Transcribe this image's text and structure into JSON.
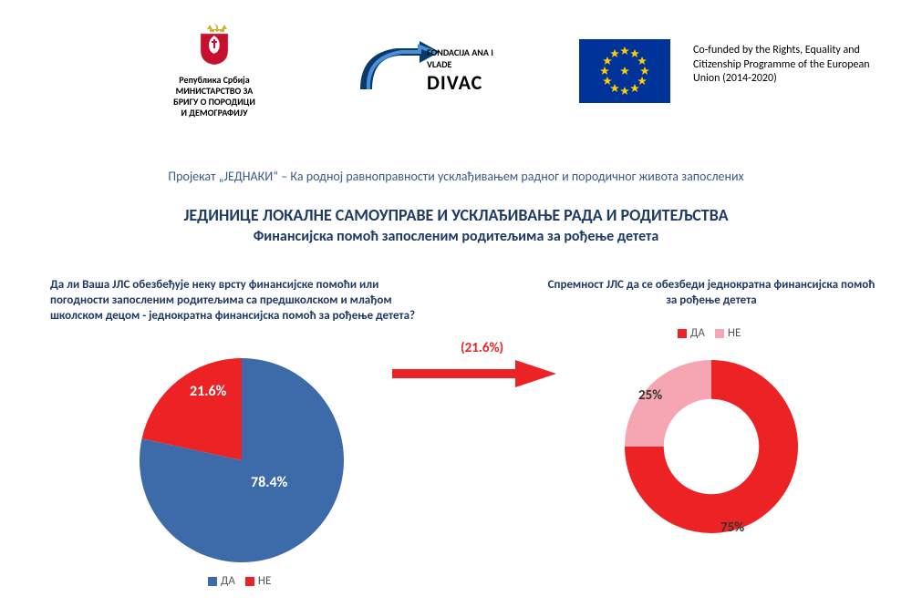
{
  "header": {
    "rs_ministry": {
      "line1": "Република Србија",
      "line2": "МИНИСТАРСТВО ЗА",
      "line3": "БРИГУ О ПОРОДИЦИ",
      "line4": "И ДЕМОГРАФИЈУ",
      "crest_colors": {
        "shield": "#c8102e",
        "eagle": "#ffffff",
        "crown": "#d4af37"
      }
    },
    "divac": {
      "small_line": "FONDACIJA ANA I VLADE",
      "brand": "DIVAC",
      "arrow_color_dark": "#0a3a6a",
      "arrow_color_light": "#4a90d9"
    },
    "eu": {
      "flag_bg": "#003399",
      "star_color": "#ffcc00",
      "text": "Co-funded by the Rights, Equality and Citizenship Programme of the European Union (2014-2020)"
    }
  },
  "project_line": "Пројекат „ЈЕДНАКИ“ – Ка родној равноправности усклађивањем  радног и породичног живота запослених",
  "main_title": "ЈЕДИНИЦЕ ЛОКАЛНЕ САМОУПРАВЕ И УСКЛАЂИВАЊЕ РАДА И РОДИТЕЉСТВА",
  "sub_title": "Финансијска помоћ запосленим родитељима за рођење детета",
  "left_chart": {
    "question": "Да ли Ваша ЈЛС обезбеђује неку врсту финансијске помоћи или погодности запосленим родитељима са предшколском и млађом школском децом - једнократна финансијска помоћ за рођење детета?",
    "type": "pie",
    "series": [
      {
        "label": "ДА",
        "value": 78.4,
        "display": "78.4%",
        "color": "#3d6aa8"
      },
      {
        "label": "НЕ",
        "value": 21.6,
        "display": "21.6%",
        "color": "#ed2224"
      }
    ],
    "legend_labels": {
      "da": "ДА",
      "ne": "НЕ"
    },
    "label_color": "#ffffff",
    "label_fontsize": 16
  },
  "arrow": {
    "annotation": "(21.6%)",
    "color": "#ed2224"
  },
  "right_chart": {
    "question": "Спремност ЈЛС да се обезбеди једнократна финансијска помоћ за рођење детета",
    "type": "donut",
    "series": [
      {
        "label": "ДА",
        "value": 75,
        "display": "75%",
        "color": "#ed2224"
      },
      {
        "label": "НЕ",
        "value": 25,
        "display": "25%",
        "color": "#f6a6b2"
      }
    ],
    "legend_labels": {
      "da": "ДА",
      "ne": "НЕ"
    },
    "inner_radius_ratio": 0.55,
    "label_color": "#333333",
    "label_fontsize": 15
  },
  "colors": {
    "title": "#1f3a63",
    "subtitle": "#1f3a63",
    "project_line": "#3a5a8a",
    "legend_text": "#555555"
  }
}
